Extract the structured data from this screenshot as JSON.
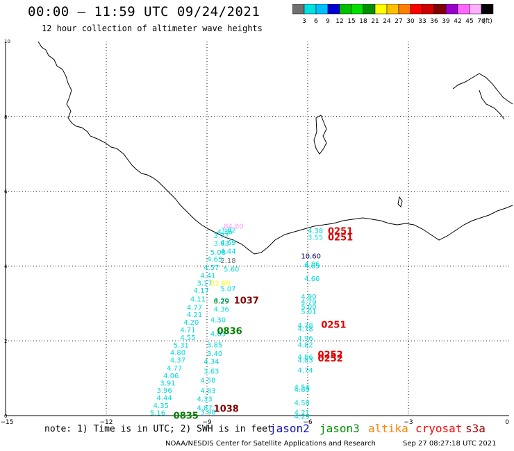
{
  "header": {
    "title": "00:00 – 11:59 UTC 09/24/2021",
    "subtitle": "12 hour collection of altimeter wave heights"
  },
  "colorbar": {
    "unit": "(ft)",
    "colors": [
      "#707070",
      "#00e0e0",
      "#00bfff",
      "#0000d0",
      "#00c000",
      "#00e000",
      "#009000",
      "#ffff00",
      "#ffc000",
      "#ff8000",
      "#ff0000",
      "#d00000",
      "#800000",
      "#9900cc",
      "#ff66ff",
      "#ffb0ff",
      "#000000"
    ],
    "labels": [
      "3",
      "6",
      "9",
      "12",
      "15",
      "18",
      "21",
      "24",
      "27",
      "30",
      "33",
      "36",
      "39",
      "42",
      "45",
      "70"
    ]
  },
  "footer": {
    "note": "note: 1) Time is in UTC; 2) SWH is in feet",
    "credit": "NOAA/NESDIS Center for Satellite Applications and Research",
    "timestamp": "Sep 27 08:27:18 UTC 2021"
  },
  "legend": [
    {
      "name": "jason2",
      "color": "#1010c0"
    },
    {
      "name": "jason3",
      "color": "#009000"
    },
    {
      "name": "altika",
      "color": "#ff8000"
    },
    {
      "name": "cryosat",
      "color": "#ff0000"
    },
    {
      "name": "s3a",
      "color": "#a00000"
    }
  ],
  "chart_data": {
    "type": "scatter",
    "xlim": [
      -15,
      0
    ],
    "ylim": [
      0,
      10
    ],
    "xticks": [
      -15,
      -12,
      -9,
      -6,
      -3,
      0
    ],
    "yticks": [
      0,
      2,
      4,
      6,
      8,
      10
    ],
    "xtick_labels": [
      "−15",
      "−12",
      "−9",
      "−6",
      "−3",
      "0"
    ],
    "ytick_labels": [
      "0",
      "2",
      "4",
      "6",
      "8",
      "10"
    ],
    "grid": true,
    "colors": {
      "cyan": "#00d8d8",
      "green": "#008000",
      "red": "#e00000",
      "maroon": "#800000",
      "navy": "#000080",
      "gray": "#707070",
      "pink": "#ff99ff",
      "yellow": "#ffff00"
    },
    "points": [
      {
        "x": -8.7,
        "y": 4.85,
        "label": "4.36",
        "color": "cyan"
      },
      {
        "x": -8.8,
        "y": 4.75,
        "label": "3.77",
        "color": "cyan"
      },
      {
        "x": -8.6,
        "y": 4.56,
        "label": "4.69",
        "color": "cyan"
      },
      {
        "x": -8.8,
        "y": 4.55,
        "label": "3.83",
        "color": "cyan"
      },
      {
        "x": -8.6,
        "y": 4.33,
        "label": "4.44",
        "color": "cyan"
      },
      {
        "x": -8.9,
        "y": 4.3,
        "label": "5.08",
        "color": "cyan"
      },
      {
        "x": -9.0,
        "y": 4.12,
        "label": "4.65",
        "color": "cyan"
      },
      {
        "x": -8.5,
        "y": 3.85,
        "label": "5.60",
        "color": "cyan"
      },
      {
        "x": -9.1,
        "y": 3.9,
        "label": "4.57",
        "color": "cyan"
      },
      {
        "x": -9.2,
        "y": 3.68,
        "label": "4.41",
        "color": "cyan"
      },
      {
        "x": -9.3,
        "y": 3.48,
        "label": "3.17",
        "color": "cyan"
      },
      {
        "x": -8.6,
        "y": 3.33,
        "label": "5.07",
        "color": "cyan"
      },
      {
        "x": -9.4,
        "y": 3.28,
        "label": "4.17",
        "color": "cyan"
      },
      {
        "x": -9.5,
        "y": 3.05,
        "label": "4.11",
        "color": "cyan"
      },
      {
        "x": -8.8,
        "y": 3.02,
        "label": "4.30",
        "color": "cyan"
      },
      {
        "x": -9.6,
        "y": 2.83,
        "label": "4.77",
        "color": "cyan"
      },
      {
        "x": -8.8,
        "y": 2.78,
        "label": "4.36",
        "color": "cyan"
      },
      {
        "x": -9.6,
        "y": 2.63,
        "label": "4.21",
        "color": "cyan"
      },
      {
        "x": -9.7,
        "y": 2.43,
        "label": "4.20",
        "color": "cyan"
      },
      {
        "x": -8.9,
        "y": 2.5,
        "label": "4.30",
        "color": "cyan"
      },
      {
        "x": -9.8,
        "y": 2.23,
        "label": "4.71",
        "color": "cyan"
      },
      {
        "x": -8.9,
        "y": 2.12,
        "label": "4.63",
        "color": "cyan"
      },
      {
        "x": -9.8,
        "y": 2.02,
        "label": "4.55",
        "color": "cyan"
      },
      {
        "x": -9.0,
        "y": 1.83,
        "label": "3.85",
        "color": "cyan"
      },
      {
        "x": -10.0,
        "y": 1.82,
        "label": "5.31",
        "color": "cyan"
      },
      {
        "x": -10.1,
        "y": 1.62,
        "label": "4.80",
        "color": "cyan"
      },
      {
        "x": -9.0,
        "y": 1.6,
        "label": "3.40",
        "color": "cyan"
      },
      {
        "x": -10.1,
        "y": 1.42,
        "label": "4.37",
        "color": "cyan"
      },
      {
        "x": -9.1,
        "y": 1.38,
        "label": "4.34",
        "color": "cyan"
      },
      {
        "x": -10.2,
        "y": 1.21,
        "label": "4.77",
        "color": "cyan"
      },
      {
        "x": -9.1,
        "y": 1.12,
        "label": "3.63",
        "color": "cyan"
      },
      {
        "x": -10.3,
        "y": 1.0,
        "label": "4.06",
        "color": "cyan"
      },
      {
        "x": -9.2,
        "y": 0.88,
        "label": "4.58",
        "color": "cyan"
      },
      {
        "x": -10.4,
        "y": 0.81,
        "label": "3.91",
        "color": "cyan"
      },
      {
        "x": -10.5,
        "y": 0.61,
        "label": "3.96",
        "color": "cyan"
      },
      {
        "x": -9.2,
        "y": 0.6,
        "label": "4.83",
        "color": "cyan"
      },
      {
        "x": -10.5,
        "y": 0.41,
        "label": "4.44",
        "color": "cyan"
      },
      {
        "x": -9.3,
        "y": 0.38,
        "label": "4.33",
        "color": "cyan"
      },
      {
        "x": -10.6,
        "y": 0.2,
        "label": "4.35",
        "color": "cyan"
      },
      {
        "x": -9.3,
        "y": 0.14,
        "label": "4.87",
        "color": "cyan"
      },
      {
        "x": -10.7,
        "y": 0.01,
        "label": "5.16",
        "color": "cyan"
      },
      {
        "x": -9.2,
        "y": 0.03,
        "label": "3.98",
        "color": "cyan"
      },
      {
        "x": -8.6,
        "y": 4.9,
        "label": "3.82",
        "color": "cyan"
      },
      {
        "x": -6.0,
        "y": 4.88,
        "label": "4.38",
        "color": "cyan"
      },
      {
        "x": -6.0,
        "y": 4.7,
        "label": "3.55",
        "color": "cyan"
      },
      {
        "x": -6.1,
        "y": 3.99,
        "label": "4.86",
        "color": "cyan"
      },
      {
        "x": -6.1,
        "y": 3.94,
        "label": "4.65",
        "color": "cyan"
      },
      {
        "x": -6.1,
        "y": 3.6,
        "label": "4.66",
        "color": "cyan"
      },
      {
        "x": -6.2,
        "y": 3.12,
        "label": "4.90",
        "color": "cyan"
      },
      {
        "x": -6.2,
        "y": 2.98,
        "label": "4.79",
        "color": "cyan"
      },
      {
        "x": -6.2,
        "y": 2.85,
        "label": "5.00",
        "color": "cyan"
      },
      {
        "x": -6.2,
        "y": 2.72,
        "label": "5.01",
        "color": "cyan"
      },
      {
        "x": -6.3,
        "y": 2.35,
        "label": "4.78",
        "color": "cyan"
      },
      {
        "x": -6.3,
        "y": 2.25,
        "label": "4.78",
        "color": "cyan"
      },
      {
        "x": -6.3,
        "y": 2.0,
        "label": "4.96",
        "color": "cyan"
      },
      {
        "x": -6.3,
        "y": 1.83,
        "label": "4.82",
        "color": "cyan"
      },
      {
        "x": -6.3,
        "y": 1.5,
        "label": "4.86",
        "color": "cyan"
      },
      {
        "x": -6.3,
        "y": 1.42,
        "label": "4.83",
        "color": "cyan"
      },
      {
        "x": -6.3,
        "y": 1.15,
        "label": "4.74",
        "color": "cyan"
      },
      {
        "x": -6.4,
        "y": 0.7,
        "label": "4.54",
        "color": "cyan"
      },
      {
        "x": -6.4,
        "y": 0.63,
        "label": "4.69",
        "color": "cyan"
      },
      {
        "x": -6.4,
        "y": 0.28,
        "label": "4.58",
        "color": "cyan"
      },
      {
        "x": -6.4,
        "y": 0.02,
        "label": "4.21",
        "color": "cyan"
      },
      {
        "x": -6.4,
        "y": -0.08,
        "label": "4.29",
        "color": "cyan"
      },
      {
        "x": -8.5,
        "y": 5.0,
        "label": "84.80",
        "color": "pink"
      },
      {
        "x": -8.6,
        "y": 4.08,
        "label": "2.18",
        "color": "gray"
      },
      {
        "x": -8.9,
        "y": 3.48,
        "label": "22.60",
        "color": "yellow"
      },
      {
        "x": -8.8,
        "y": 3.0,
        "label": "8.29",
        "color": "green"
      },
      {
        "x": -6.2,
        "y": 4.2,
        "label": "10.60",
        "color": "navy"
      },
      {
        "x": -5.4,
        "y": 4.85,
        "label": "0251",
        "color": "red"
      },
      {
        "x": -5.4,
        "y": 4.68,
        "label": "0251",
        "color": "red"
      },
      {
        "x": -5.6,
        "y": 2.35,
        "label": "0251",
        "color": "red"
      },
      {
        "x": -5.7,
        "y": 1.55,
        "label": "0252",
        "color": "red"
      },
      {
        "x": -5.7,
        "y": 1.45,
        "label": "0252",
        "color": "red"
      },
      {
        "x": -8.2,
        "y": 3.0,
        "label": "1037",
        "color": "maroon"
      },
      {
        "x": -8.7,
        "y": 2.18,
        "label": "0836",
        "color": "green"
      },
      {
        "x": -8.8,
        "y": 0.1,
        "label": "1038",
        "color": "maroon"
      },
      {
        "x": -10.0,
        "y": -0.08,
        "label": "0835",
        "color": "green"
      }
    ]
  }
}
